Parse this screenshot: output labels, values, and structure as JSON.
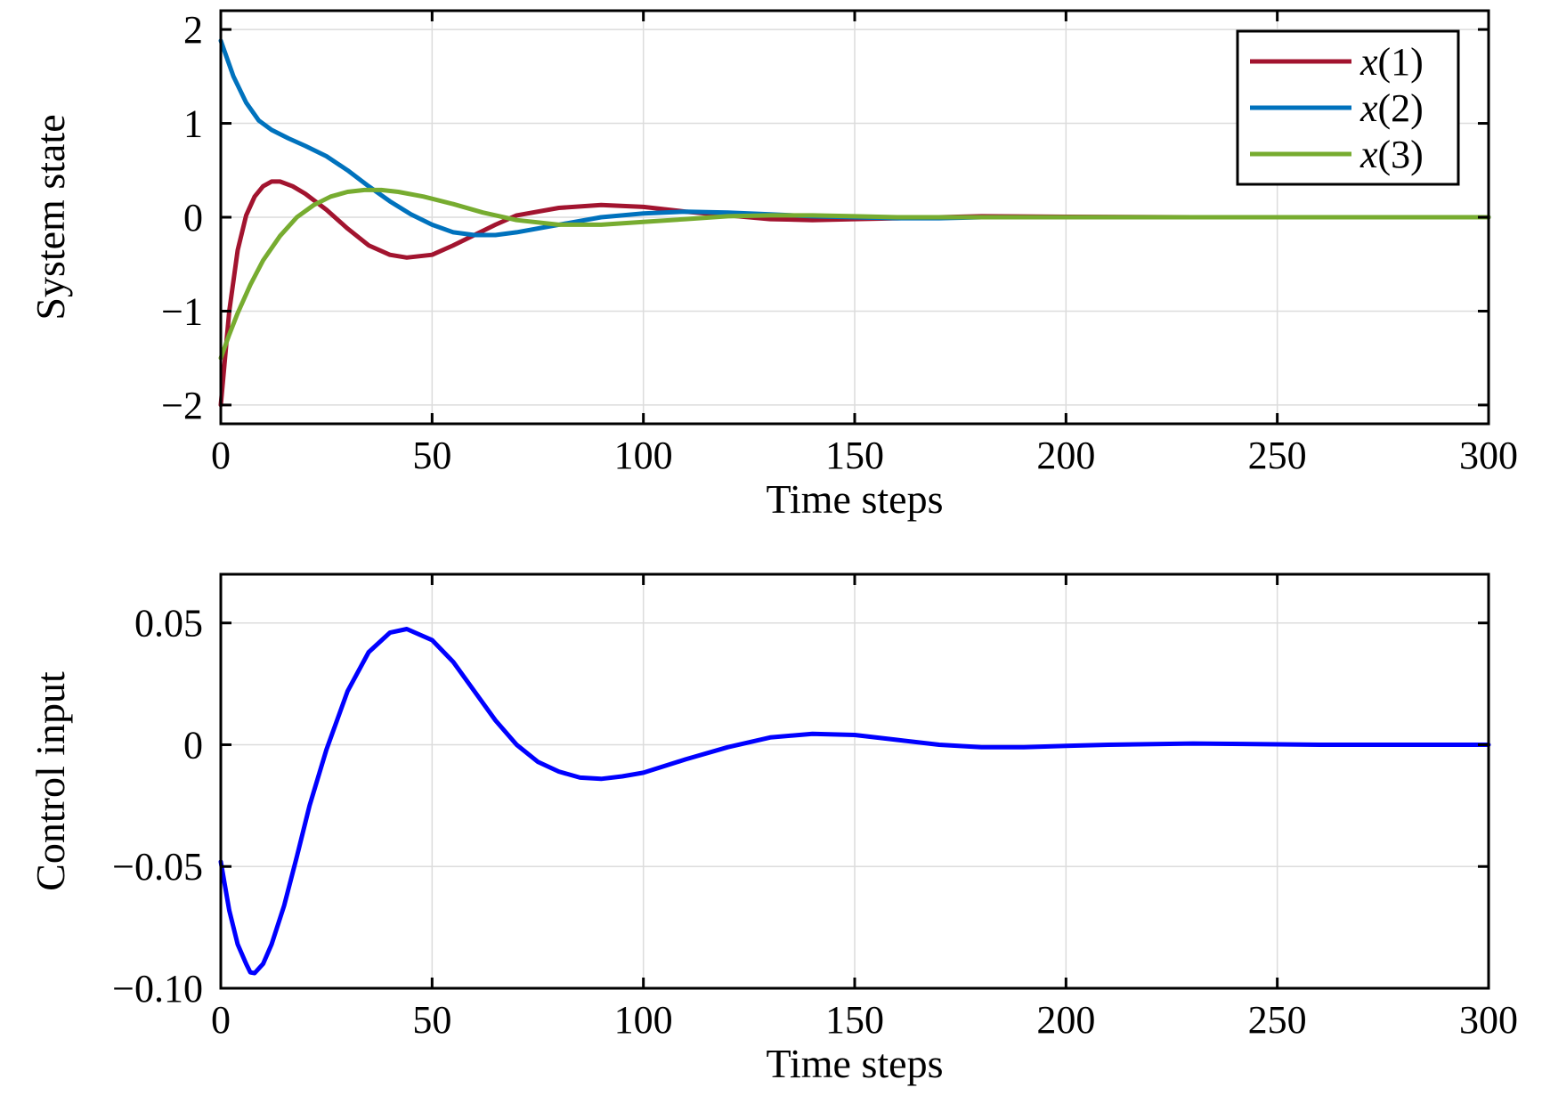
{
  "chart_data": [
    {
      "type": "line",
      "xlabel": "Time steps",
      "ylabel": "System state",
      "xlim": [
        0,
        300
      ],
      "ylim": [
        -2.2,
        2.2
      ],
      "xticks": [
        0,
        50,
        100,
        150,
        200,
        250,
        300
      ],
      "yticks": [
        -2,
        -1,
        0,
        1,
        2
      ],
      "ytick_labels": [
        "−2",
        "−1",
        "0",
        "1",
        "2"
      ],
      "grid": true,
      "legend_position": "top-right",
      "series": [
        {
          "name": "x(1)",
          "name_var": "x",
          "name_idx": "(1)",
          "color": "#a2142f",
          "points": [
            [
              0,
              -2.0
            ],
            [
              2,
              -1.0
            ],
            [
              4,
              -0.35
            ],
            [
              6,
              0.02
            ],
            [
              8,
              0.22
            ],
            [
              10,
              0.33
            ],
            [
              12,
              0.38
            ],
            [
              14,
              0.38
            ],
            [
              17,
              0.33
            ],
            [
              20,
              0.25
            ],
            [
              25,
              0.08
            ],
            [
              30,
              -0.12
            ],
            [
              35,
              -0.3
            ],
            [
              40,
              -0.4
            ],
            [
              44,
              -0.43
            ],
            [
              50,
              -0.4
            ],
            [
              55,
              -0.3
            ],
            [
              60,
              -0.19
            ],
            [
              65,
              -0.08
            ],
            [
              70,
              0.02
            ],
            [
              80,
              0.1
            ],
            [
              90,
              0.13
            ],
            [
              100,
              0.11
            ],
            [
              110,
              0.06
            ],
            [
              120,
              0.02
            ],
            [
              130,
              -0.02
            ],
            [
              140,
              -0.03
            ],
            [
              150,
              -0.02
            ],
            [
              160,
              -0.01
            ],
            [
              170,
              0.0
            ],
            [
              180,
              0.01
            ],
            [
              200,
              0.005
            ],
            [
              230,
              0.0
            ],
            [
              260,
              0.0
            ],
            [
              300,
              0.0
            ]
          ]
        },
        {
          "name": "x(2)",
          "name_var": "x",
          "name_idx": "(2)",
          "color": "#0072bd",
          "points": [
            [
              0,
              1.88
            ],
            [
              3,
              1.5
            ],
            [
              6,
              1.22
            ],
            [
              9,
              1.03
            ],
            [
              12,
              0.93
            ],
            [
              16,
              0.84
            ],
            [
              20,
              0.76
            ],
            [
              25,
              0.65
            ],
            [
              30,
              0.5
            ],
            [
              35,
              0.33
            ],
            [
              40,
              0.17
            ],
            [
              45,
              0.03
            ],
            [
              50,
              -0.08
            ],
            [
              55,
              -0.16
            ],
            [
              60,
              -0.19
            ],
            [
              65,
              -0.19
            ],
            [
              70,
              -0.16
            ],
            [
              80,
              -0.08
            ],
            [
              90,
              0.0
            ],
            [
              100,
              0.04
            ],
            [
              110,
              0.06
            ],
            [
              120,
              0.05
            ],
            [
              130,
              0.03
            ],
            [
              140,
              0.01
            ],
            [
              150,
              0.0
            ],
            [
              160,
              -0.01
            ],
            [
              170,
              -0.01
            ],
            [
              180,
              0.0
            ],
            [
              200,
              0.0
            ],
            [
              300,
              0.0
            ]
          ]
        },
        {
          "name": "x(3)",
          "name_var": "x",
          "name_idx": "(3)",
          "color": "#77ac30",
          "points": [
            [
              0,
              -1.5
            ],
            [
              2,
              -1.25
            ],
            [
              4,
              -1.02
            ],
            [
              7,
              -0.72
            ],
            [
              10,
              -0.46
            ],
            [
              14,
              -0.2
            ],
            [
              18,
              0.0
            ],
            [
              22,
              0.13
            ],
            [
              26,
              0.22
            ],
            [
              30,
              0.27
            ],
            [
              34,
              0.29
            ],
            [
              38,
              0.29
            ],
            [
              42,
              0.27
            ],
            [
              48,
              0.22
            ],
            [
              55,
              0.14
            ],
            [
              62,
              0.05
            ],
            [
              70,
              -0.03
            ],
            [
              80,
              -0.08
            ],
            [
              90,
              -0.08
            ],
            [
              100,
              -0.05
            ],
            [
              110,
              -0.02
            ],
            [
              120,
              0.01
            ],
            [
              130,
              0.02
            ],
            [
              140,
              0.02
            ],
            [
              150,
              0.01
            ],
            [
              160,
              0.0
            ],
            [
              170,
              0.0
            ],
            [
              200,
              0.0
            ],
            [
              300,
              0.0
            ]
          ]
        }
      ]
    },
    {
      "type": "line",
      "xlabel": "Time steps",
      "ylabel": "Control input",
      "xlim": [
        0,
        300
      ],
      "ylim": [
        -0.1,
        0.07
      ],
      "xticks": [
        0,
        50,
        100,
        150,
        200,
        250,
        300
      ],
      "yticks": [
        -0.1,
        -0.05,
        0,
        0.05
      ],
      "ytick_labels": [
        "−0.10",
        "−0.05",
        "0",
        "0.05"
      ],
      "grid": true,
      "series": [
        {
          "color": "#0000ff",
          "points": [
            [
              0,
              -0.048
            ],
            [
              2,
              -0.068
            ],
            [
              4,
              -0.082
            ],
            [
              6,
              -0.09
            ],
            [
              7,
              -0.0935
            ],
            [
              8,
              -0.0938
            ],
            [
              10,
              -0.09
            ],
            [
              12,
              -0.082
            ],
            [
              15,
              -0.066
            ],
            [
              18,
              -0.046
            ],
            [
              21,
              -0.025
            ],
            [
              25,
              -0.002
            ],
            [
              30,
              0.022
            ],
            [
              35,
              0.038
            ],
            [
              40,
              0.046
            ],
            [
              44,
              0.0475
            ],
            [
              50,
              0.043
            ],
            [
              55,
              0.034
            ],
            [
              60,
              0.022
            ],
            [
              65,
              0.01
            ],
            [
              70,
              0.0
            ],
            [
              75,
              -0.007
            ],
            [
              80,
              -0.011
            ],
            [
              85,
              -0.0135
            ],
            [
              90,
              -0.014
            ],
            [
              95,
              -0.013
            ],
            [
              100,
              -0.0115
            ],
            [
              110,
              -0.006
            ],
            [
              120,
              -0.001
            ],
            [
              130,
              0.003
            ],
            [
              140,
              0.0045
            ],
            [
              150,
              0.004
            ],
            [
              160,
              0.002
            ],
            [
              170,
              0.0
            ],
            [
              180,
              -0.001
            ],
            [
              190,
              -0.001
            ],
            [
              200,
              -0.0005
            ],
            [
              210,
              0.0
            ],
            [
              230,
              0.0005
            ],
            [
              260,
              0.0
            ],
            [
              300,
              0.0
            ]
          ]
        }
      ]
    }
  ]
}
